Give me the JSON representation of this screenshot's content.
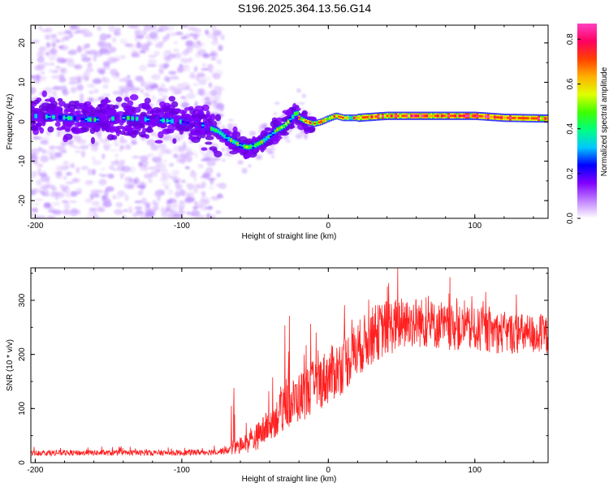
{
  "figure_title": "S196.2025.364.13.56.G14",
  "chart_data": [
    {
      "type": "heatmap",
      "name": "spectrogram",
      "xlabel": "Height of straight line (km)",
      "ylabel": "Frequency (Hz)",
      "xlim": [
        -203,
        150
      ],
      "ylim": [
        -24.5,
        24.5
      ],
      "xticks": [
        -200,
        -100,
        0,
        100
      ],
      "yticks": [
        -20,
        -10,
        0,
        10,
        20
      ],
      "xtick_labels": [
        "-200",
        "-100",
        "0",
        "100"
      ],
      "ytick_labels": [
        "-20",
        "-10",
        "0",
        "10",
        "20"
      ],
      "ridge": {
        "x": [
          -203,
          -180,
          -160,
          -140,
          -120,
          -100,
          -85,
          -75,
          -70,
          -65,
          -60,
          -55,
          -50,
          -45,
          -40,
          -35,
          -30,
          -25,
          -22,
          -20,
          -15,
          -10,
          -5,
          0,
          5,
          10,
          20,
          40,
          60,
          80,
          100,
          120,
          150
        ],
        "y": [
          1.5,
          1.0,
          0.5,
          1.0,
          0.5,
          0.0,
          -1.0,
          -2.5,
          -4.0,
          -5.0,
          -6.0,
          -6.5,
          -6.0,
          -5.0,
          -3.5,
          -2.0,
          -1.0,
          1.0,
          2.5,
          1.0,
          0.0,
          -0.5,
          0.0,
          0.8,
          1.5,
          1.0,
          1.0,
          1.5,
          1.5,
          1.5,
          1.5,
          1.0,
          0.8
        ]
      }
    },
    {
      "type": "colorbar",
      "name": "amplitude-colorbar",
      "label": "Normalized spectral amplitude",
      "range": [
        0,
        0.87
      ],
      "ticks": [
        0.0,
        0.2,
        0.4,
        0.6,
        0.8
      ],
      "tick_labels": [
        "0.0",
        "0.2",
        "0.4",
        "0.6",
        "0.8"
      ],
      "colors": [
        "#ffffff",
        "#c080ff",
        "#8000ff",
        "#0000ff",
        "#00c8ff",
        "#00ff80",
        "#40ff00",
        "#e0ff00",
        "#ffb000",
        "#ff4000",
        "#ff0060",
        "#ff40c0"
      ]
    },
    {
      "type": "line",
      "name": "snr-trace",
      "xlabel": "Height of straight line (km)",
      "ylabel": "SNR (10 * v/v)",
      "xlim": [
        -203,
        150
      ],
      "ylim": [
        0,
        360
      ],
      "xticks": [
        -200,
        -100,
        0,
        100
      ],
      "yticks": [
        0,
        100,
        200,
        300
      ],
      "xtick_labels": [
        "-200",
        "-100",
        "0",
        "100"
      ],
      "ytick_labels": [
        "0",
        "100",
        "200",
        "300"
      ],
      "color": "#ff2020",
      "trend": {
        "x": [
          -203,
          -150,
          -100,
          -80,
          -70,
          -60,
          -50,
          -40,
          -30,
          -20,
          -10,
          0,
          10,
          20,
          30,
          40,
          60,
          80,
          100,
          120,
          150
        ],
        "y": [
          18,
          18,
          18,
          20,
          22,
          30,
          45,
          70,
          100,
          120,
          140,
          160,
          180,
          210,
          235,
          250,
          260,
          250,
          245,
          240,
          235
        ]
      },
      "spread": {
        "x": [
          -203,
          -100,
          -70,
          -60,
          -40,
          -20,
          0,
          20,
          40,
          80,
          150
        ],
        "y": [
          10,
          10,
          12,
          30,
          60,
          90,
          100,
          100,
          100,
          80,
          70
        ]
      }
    }
  ]
}
